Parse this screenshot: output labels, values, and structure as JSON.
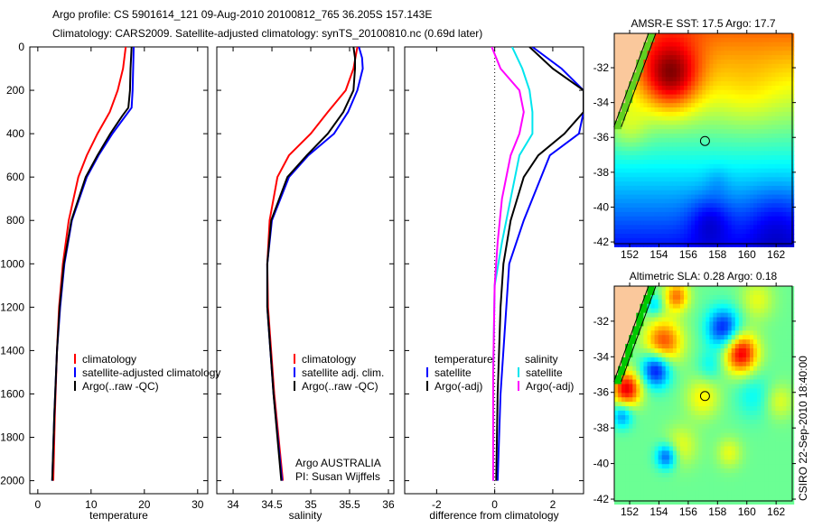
{
  "title": {
    "line1": "Argo profile: CS 5901614_121 09-Aug-2010 20100812_765 36.205S 157.143E",
    "line2": "Climatology: CARS2009. Satellite-adjusted climatology: synTS_20100810.nc (0.69d later)"
  },
  "credit": {
    "text": "CSIRO 22-Sep-2010 18:40:00"
  },
  "annotation": {
    "line1": "Argo AUSTRALIA",
    "line2": "PI: Susan Wijffels"
  },
  "colors": {
    "climatology": "#ff0000",
    "satellite": "#0000ff",
    "argo": "#000000",
    "salinity_satellite": "#00e5ee",
    "salinity_argo": "#ff00ff"
  },
  "chart_data": [
    {
      "type": "line",
      "name": "temperature",
      "xlabel": "temperature",
      "ylabel": "",
      "xlim": [
        -1.5,
        31.9
      ],
      "ylim": [
        0,
        2060
      ],
      "y_reversed": true,
      "xticks": [
        "0",
        "10",
        "20",
        "30"
      ],
      "xtick_values": [
        0,
        10,
        20,
        30
      ],
      "yticks": [
        "0",
        "200",
        "400",
        "600",
        "800",
        "1000",
        "1200",
        "1400",
        "1600",
        "1800",
        "2000"
      ],
      "ytick_values": [
        0,
        200,
        400,
        600,
        800,
        1000,
        1200,
        1400,
        1600,
        1800,
        2000
      ],
      "legend": [
        "climatology",
        "satellite-adjusted climatology",
        "Argo(..raw -QC)"
      ],
      "series": [
        {
          "name": "climatology",
          "color": "#ff0000",
          "depth": [
            0,
            100,
            200,
            300,
            400,
            500,
            600,
            800,
            1000,
            1200,
            1400,
            1700,
            2000
          ],
          "values": [
            16.5,
            16.0,
            15.0,
            13.5,
            11.2,
            9.2,
            7.6,
            5.8,
            4.7,
            4.0,
            3.6,
            3.2,
            2.9
          ]
        },
        {
          "name": "satellite-adjusted climatology",
          "color": "#0000ff",
          "depth": [
            0,
            100,
            200,
            280,
            320,
            400,
            500,
            600,
            800,
            1000,
            1200,
            1400,
            1700,
            2000
          ],
          "values": [
            18.0,
            17.9,
            17.8,
            17.6,
            16.4,
            14.0,
            11.4,
            9.2,
            6.4,
            5.0,
            4.2,
            3.6,
            3.1,
            2.7
          ]
        },
        {
          "name": "Argo(..raw -QC)",
          "color": "#000000",
          "depth": [
            0,
            100,
            200,
            280,
            320,
            400,
            500,
            600,
            800,
            1000,
            1200,
            1400,
            1700,
            2000
          ],
          "values": [
            17.6,
            17.4,
            17.3,
            17.0,
            15.8,
            13.6,
            11.2,
            9.0,
            6.3,
            4.9,
            4.1,
            3.6,
            3.1,
            2.7
          ]
        }
      ]
    },
    {
      "type": "line",
      "name": "salinity",
      "xlabel": "salinity",
      "ylabel": "",
      "xlim": [
        33.79,
        36.07
      ],
      "ylim": [
        0,
        2060
      ],
      "y_reversed": true,
      "xticks": [
        "34",
        "34.5",
        "35",
        "35.5",
        "36"
      ],
      "xtick_values": [
        34,
        34.5,
        35,
        35.5,
        36
      ],
      "legend": [
        "climatology",
        "satellite adj. clim.",
        "Argo(..raw -QC)"
      ],
      "series": [
        {
          "name": "climatology",
          "color": "#ff0000",
          "depth": [
            0,
            100,
            200,
            300,
            400,
            500,
            600,
            800,
            1000,
            1200,
            1600,
            2000
          ],
          "values": [
            35.6,
            35.55,
            35.45,
            35.22,
            35.0,
            34.72,
            34.57,
            34.47,
            34.44,
            34.45,
            34.53,
            34.64
          ]
        },
        {
          "name": "satellite adj. clim.",
          "color": "#0000ff",
          "depth": [
            0,
            50,
            100,
            200,
            300,
            400,
            500,
            600,
            800,
            1000,
            1200,
            1600,
            2000
          ],
          "values": [
            35.62,
            35.66,
            35.67,
            35.6,
            35.48,
            35.3,
            34.97,
            34.72,
            34.5,
            34.44,
            34.44,
            34.52,
            34.63
          ]
        },
        {
          "name": "Argo(..raw -QC)",
          "color": "#000000",
          "depth": [
            0,
            50,
            100,
            200,
            300,
            400,
            500,
            600,
            800,
            1000,
            1200,
            1600,
            2000
          ],
          "values": [
            35.55,
            35.57,
            35.57,
            35.55,
            35.42,
            35.22,
            34.95,
            34.7,
            34.49,
            34.44,
            34.44,
            34.52,
            34.62
          ]
        }
      ]
    },
    {
      "type": "line",
      "name": "difference",
      "xlabel": "difference from climatology",
      "ylabel": "",
      "xlim": [
        -3.1,
        3.06
      ],
      "ylim": [
        0,
        2060
      ],
      "y_reversed": true,
      "xticks": [
        "-2",
        "0",
        "2"
      ],
      "xtick_values": [
        -2,
        0,
        2
      ],
      "legend": {
        "temperature_header": "temperature",
        "salinity_header": "salinity",
        "items": [
          "satellite",
          "Argo(-adj)",
          "satellite",
          "Argo(-adj)"
        ]
      },
      "series": [
        {
          "name": "temperature satellite",
          "color": "#0000ff",
          "depth": [
            0,
            100,
            200,
            300,
            400,
            500,
            700,
            800,
            1000,
            1200,
            1600,
            2000
          ],
          "values": [
            1.3,
            2.3,
            3.06,
            3.06,
            2.9,
            1.9,
            1.3,
            1.0,
            0.5,
            0.4,
            0.2,
            0.1
          ]
        },
        {
          "name": "temperature Argo(-adj)",
          "color": "#000000",
          "depth": [
            0,
            100,
            200,
            300,
            400,
            500,
            600,
            800,
            1000,
            1200,
            1600,
            2000
          ],
          "values": [
            1.2,
            2.0,
            3.06,
            3.06,
            2.4,
            1.5,
            1.0,
            0.55,
            0.3,
            0.2,
            0.1,
            0.05
          ]
        },
        {
          "name": "salinity satellite",
          "color": "#00e5ee",
          "depth": [
            0,
            100,
            200,
            300,
            400,
            500,
            700,
            900,
            1100,
            1500,
            2000
          ],
          "values": [
            0.6,
            0.95,
            1.2,
            1.3,
            1.3,
            0.85,
            0.55,
            0.25,
            0.0,
            -0.05,
            -0.05
          ]
        },
        {
          "name": "salinity Argo(-adj)",
          "color": "#ff00ff",
          "depth": [
            0,
            100,
            200,
            300,
            400,
            500,
            700,
            900,
            1100,
            1500,
            2000
          ],
          "values": [
            -0.1,
            0.2,
            0.85,
            1.0,
            0.85,
            0.55,
            0.25,
            0.1,
            0.0,
            -0.05,
            -0.05
          ]
        }
      ]
    },
    {
      "type": "heatmap",
      "name": "sst-map",
      "title": "AMSR-E SST: 17.5 Argo: 17.7",
      "xlim": [
        150.95,
        163.1
      ],
      "ylim": [
        -42.1,
        -30.03
      ],
      "xticks": [
        "152",
        "154",
        "156",
        "158",
        "160",
        "162"
      ],
      "xtick_values": [
        152,
        154,
        156,
        158,
        160,
        162
      ],
      "yticks": [
        "-32",
        "-34",
        "-36",
        "-38",
        "-40",
        "-42"
      ],
      "ytick_values": [
        -32,
        -34,
        -36,
        -38,
        -40,
        -42
      ],
      "argo_position": {
        "lon": 157.143,
        "lat": -36.205
      }
    },
    {
      "type": "heatmap",
      "name": "sla-map",
      "title": "Altimetric SLA: 0.28 Argo: 0.18",
      "xlim": [
        150.95,
        163.1
      ],
      "ylim": [
        -42.1,
        -30.03
      ],
      "xticks": [
        "152",
        "154",
        "156",
        "158",
        "160",
        "162"
      ],
      "xtick_values": [
        152,
        154,
        156,
        158,
        160,
        162
      ],
      "yticks": [
        "-32",
        "-34",
        "-36",
        "-38",
        "-40",
        "-42"
      ],
      "ytick_values": [
        -32,
        -34,
        -36,
        -38,
        -40,
        -42
      ],
      "argo_position": {
        "lon": 157.143,
        "lat": -36.205
      }
    }
  ]
}
